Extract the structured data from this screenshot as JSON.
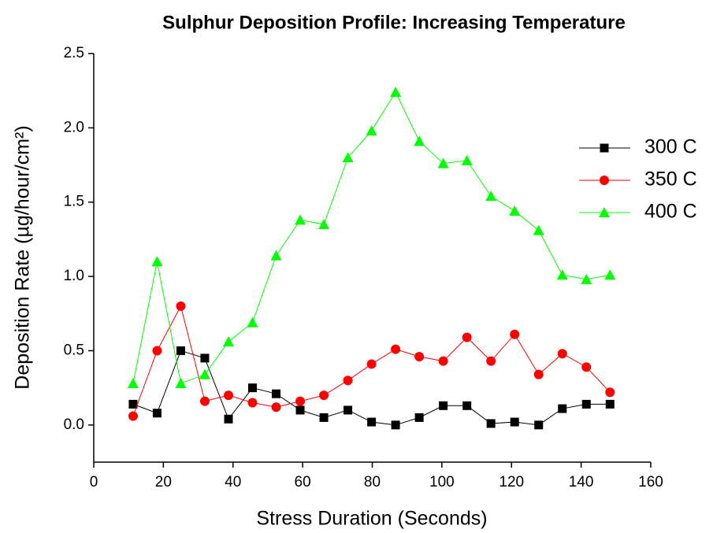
{
  "chart_data": {
    "type": "line",
    "title": "Sulphur Deposition Profile: Increasing Temperature",
    "xlabel": "Stress Duration (Seconds)",
    "ylabel": "Deposition Rate (µg/hour/cm²)",
    "x": [
      11.3,
      18.2,
      25.0,
      31.9,
      38.7,
      45.6,
      52.4,
      59.3,
      66.1,
      73.0,
      79.8,
      86.7,
      93.5,
      100.4,
      107.2,
      114.1,
      120.9,
      127.8,
      134.6,
      141.5,
      148.3
    ],
    "series": [
      {
        "name": "300 C",
        "color": "#000000",
        "marker": "square",
        "values": [
          0.14,
          0.08,
          0.5,
          0.45,
          0.04,
          0.25,
          0.21,
          0.1,
          0.05,
          0.1,
          0.02,
          0.0,
          0.05,
          0.13,
          0.13,
          0.01,
          0.02,
          0.0,
          0.11,
          0.14,
          0.14
        ]
      },
      {
        "name": "350 C",
        "color": "#ff0000",
        "marker": "circle",
        "values": [
          0.06,
          0.5,
          0.8,
          0.16,
          0.2,
          0.15,
          0.12,
          0.16,
          0.2,
          0.3,
          0.41,
          0.51,
          0.46,
          0.43,
          0.59,
          0.43,
          0.61,
          0.34,
          0.48,
          0.39,
          0.22
        ]
      },
      {
        "name": "400 C",
        "color": "#00ff00",
        "marker": "triangle",
        "values": [
          0.28,
          1.1,
          0.28,
          0.34,
          0.56,
          0.69,
          1.14,
          1.38,
          1.35,
          1.8,
          1.98,
          2.24,
          1.91,
          1.76,
          1.78,
          1.54,
          1.44,
          1.31,
          1.01,
          0.98,
          1.01
        ]
      }
    ],
    "xlim": [
      0,
      160
    ],
    "xticks": [
      0,
      20,
      40,
      60,
      80,
      100,
      120,
      140,
      160
    ],
    "ylim": [
      -0.25,
      2.5
    ],
    "yticks": [
      {
        "value": 0,
        "label": "0.0"
      },
      0.5,
      {
        "value": 1,
        "label": "1.0"
      },
      1.5,
      {
        "value": 2,
        "label": "2.0"
      },
      2.5
    ],
    "grid": false,
    "legend": "right"
  }
}
